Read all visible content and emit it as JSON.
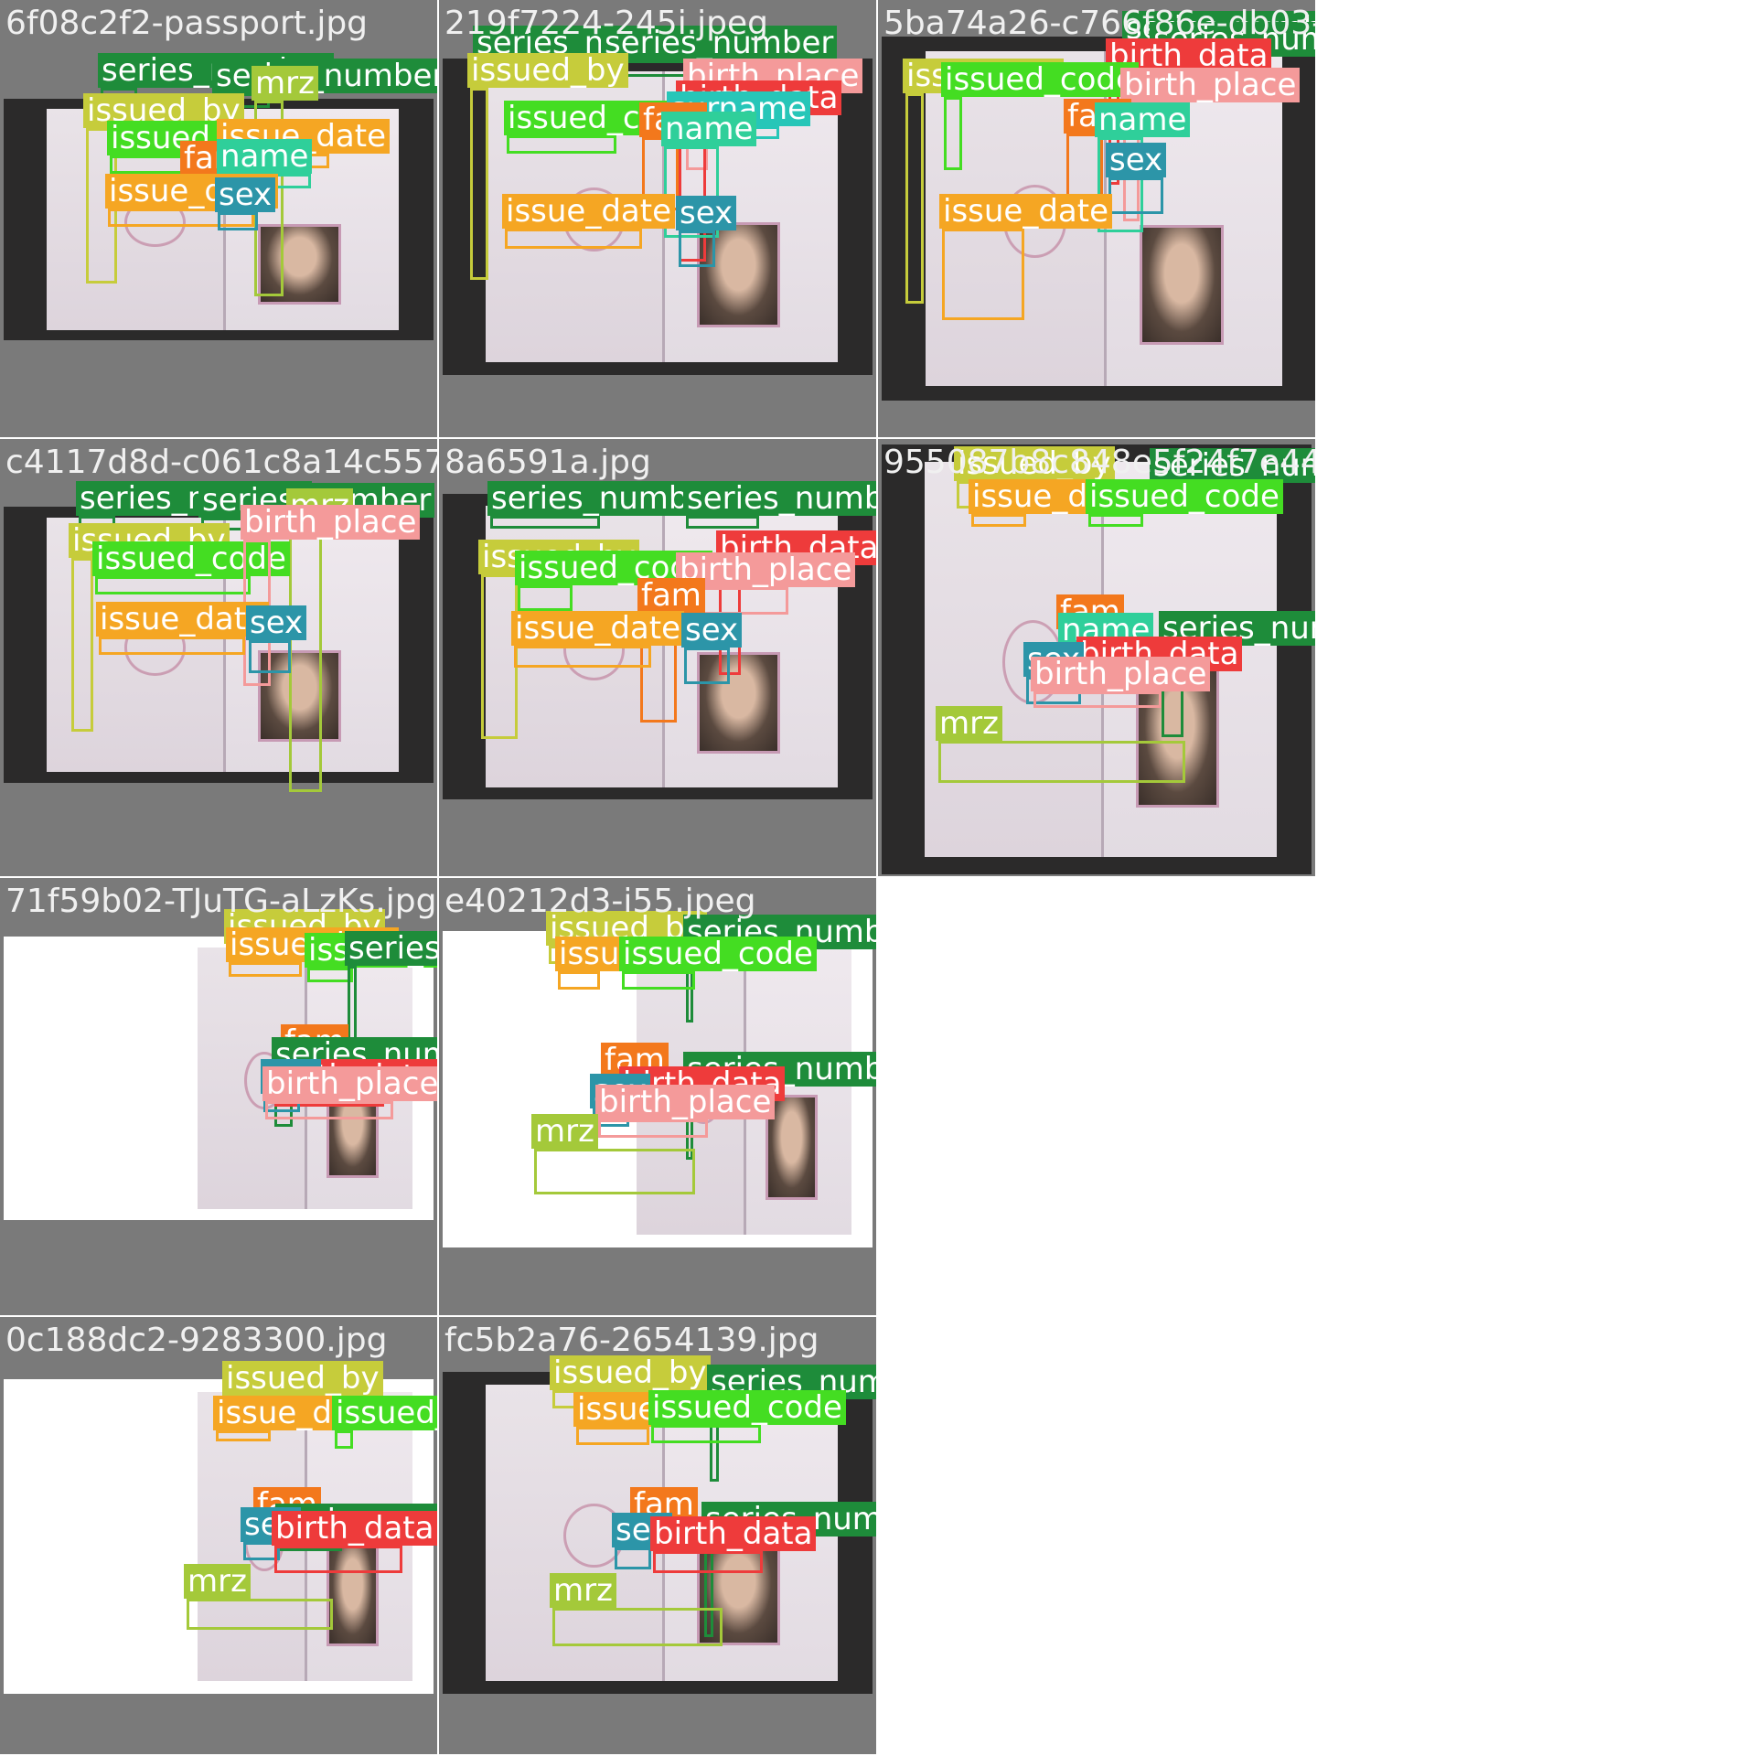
{
  "classes": {
    "series_number": "#1e8c3a",
    "issued_by": "#c6cc3b",
    "issued_code": "#44dd22",
    "issue_date": "#f5a623",
    "birth_data": "#ee3b3b",
    "birth_place": "#f49a9a",
    "fam": "#f3781c",
    "name": "#2fcf9a",
    "surname": "#27c6b8",
    "sex": "#2c95a8",
    "mrz": "#a4c93a"
  },
  "cells": [
    {
      "filename": "6f08c2f2-passport.jpg",
      "background": "dark",
      "annotations": [
        {
          "label": "series_number"
        },
        {
          "label": "series_number"
        },
        {
          "label": "mrz"
        },
        {
          "label": "issued_by"
        },
        {
          "label": "issued_code"
        },
        {
          "label": "issue_date"
        },
        {
          "label": "fam"
        },
        {
          "label": "name"
        },
        {
          "label": "issue_date"
        },
        {
          "label": "sex"
        }
      ]
    },
    {
      "filename": "219f7224-245i.jpeg",
      "background": "dark",
      "annotations": [
        {
          "label": "series_number"
        },
        {
          "label": "series_number"
        },
        {
          "label": "issued_by"
        },
        {
          "label": "birth_place"
        },
        {
          "label": "birth_data"
        },
        {
          "label": "issued_code"
        },
        {
          "label": "surname"
        },
        {
          "label": "fam"
        },
        {
          "label": "name"
        },
        {
          "label": "issue_date"
        },
        {
          "label": "sex"
        }
      ]
    },
    {
      "filename": "5ba74a26-c766f86e-db03-4606-aac7-dc667d0",
      "background": "dark",
      "annotations": [
        {
          "label": "series_number"
        },
        {
          "label": "series_number"
        },
        {
          "label": "birth_data"
        },
        {
          "label": "issued_by"
        },
        {
          "label": "issued_code"
        },
        {
          "label": "birth_place"
        },
        {
          "label": "fam"
        },
        {
          "label": "name"
        },
        {
          "label": "sex"
        },
        {
          "label": "issue_date"
        }
      ]
    },
    {
      "filename": "c4117d8d-c061c8a14c557e3",
      "background": "dark",
      "annotations": [
        {
          "label": "series_number"
        },
        {
          "label": "series_number"
        },
        {
          "label": "mrz"
        },
        {
          "label": "issued_by"
        },
        {
          "label": "issued_code"
        },
        {
          "label": "birth_place"
        },
        {
          "label": "issue_date"
        },
        {
          "label": "sex"
        }
      ]
    },
    {
      "filename": "8a6591a.jpg",
      "background": "dark",
      "annotations": [
        {
          "label": "series_number"
        },
        {
          "label": "series_number"
        },
        {
          "label": "birth_data"
        },
        {
          "label": "issued_by"
        },
        {
          "label": "issued_code"
        },
        {
          "label": "birth_place"
        },
        {
          "label": "fam"
        },
        {
          "label": "issue_date"
        },
        {
          "label": "sex"
        }
      ]
    },
    {
      "filename": "955087b8c848e5f24f7e44419",
      "background": "dark",
      "annotations": [
        {
          "label": "issued_by"
        },
        {
          "label": "series_number"
        },
        {
          "label": "issue_date"
        },
        {
          "label": "issued_code"
        },
        {
          "label": "fam"
        },
        {
          "label": "series_number"
        },
        {
          "label": "name"
        },
        {
          "label": "birth_data"
        },
        {
          "label": "sex"
        },
        {
          "label": "birth_place"
        },
        {
          "label": "mrz"
        }
      ]
    },
    {
      "filename": "71f59b02-TJuTG-aLzKs.jpg",
      "background": "white",
      "annotations": [
        {
          "label": "issued_by"
        },
        {
          "label": "issue_date"
        },
        {
          "label": "issued_code"
        },
        {
          "label": "series_number"
        },
        {
          "label": "fam"
        },
        {
          "label": "series_number"
        },
        {
          "label": "birth_data"
        },
        {
          "label": "sex"
        },
        {
          "label": "birth_place"
        }
      ]
    },
    {
      "filename": "e40212d3-i55.jpeg",
      "background": "white",
      "annotations": [
        {
          "label": "issued_by"
        },
        {
          "label": "series_number"
        },
        {
          "label": "issue_date"
        },
        {
          "label": "issued_code"
        },
        {
          "label": "fam"
        },
        {
          "label": "series_number"
        },
        {
          "label": "birth_data"
        },
        {
          "label": "sex"
        },
        {
          "label": "birth_place"
        },
        {
          "label": "mrz"
        }
      ]
    },
    {
      "filename": "",
      "empty": true
    },
    {
      "filename": "0c188dc2-9283300.jpg",
      "background": "white",
      "annotations": [
        {
          "label": "issued_by"
        },
        {
          "label": "issue_date"
        },
        {
          "label": "issued_code"
        },
        {
          "label": "fam"
        },
        {
          "label": "series_number"
        },
        {
          "label": "sex"
        },
        {
          "label": "birth_data"
        },
        {
          "label": "mrz"
        }
      ]
    },
    {
      "filename": "fc5b2a76-2654139.jpg",
      "background": "dark",
      "annotations": [
        {
          "label": "issued_by"
        },
        {
          "label": "series_number"
        },
        {
          "label": "series_number"
        },
        {
          "label": "issue_date"
        },
        {
          "label": "issued_code"
        },
        {
          "label": "fam"
        },
        {
          "label": "series_number"
        },
        {
          "label": "sex"
        },
        {
          "label": "birth_data"
        },
        {
          "label": "mrz"
        }
      ]
    },
    {
      "filename": "",
      "empty": true
    }
  ]
}
